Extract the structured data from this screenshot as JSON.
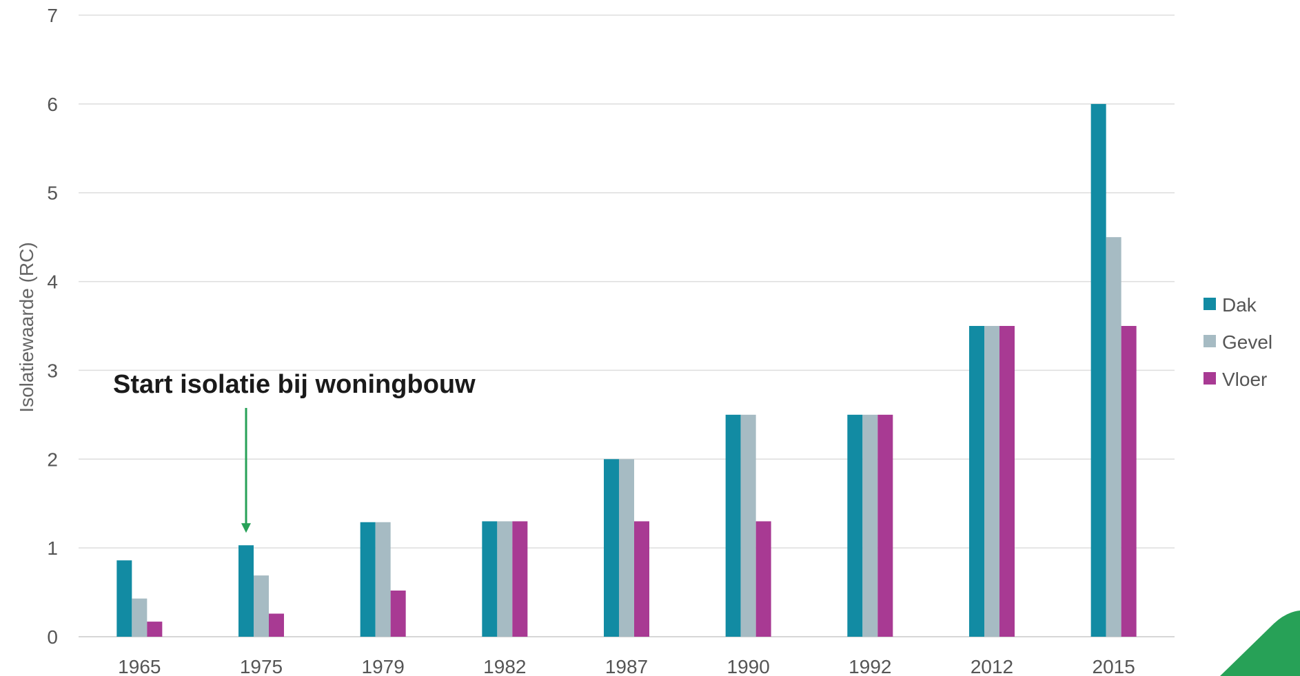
{
  "chart_data": {
    "type": "bar",
    "title": "",
    "xlabel": "",
    "ylabel": "Isolatiewaarde (RC)",
    "ylim": [
      0,
      7
    ],
    "yticks": [
      0,
      1,
      2,
      3,
      4,
      5,
      6,
      7
    ],
    "grid": true,
    "legend_position": "right",
    "categories": [
      "1965",
      "1975",
      "1979",
      "1982",
      "1987",
      "1990",
      "1992",
      "2012",
      "2015"
    ],
    "series": [
      {
        "name": "Dak",
        "color": "#128ba3",
        "values": [
          0.86,
          1.03,
          1.29,
          1.3,
          2.0,
          2.5,
          2.5,
          3.5,
          6.0
        ]
      },
      {
        "name": "Gevel",
        "color": "#a6bbc3",
        "values": [
          0.43,
          0.69,
          1.29,
          1.3,
          2.0,
          2.5,
          2.5,
          3.5,
          4.5
        ]
      },
      {
        "name": "Vloer",
        "color": "#a83a93",
        "values": [
          0.17,
          0.26,
          0.52,
          1.3,
          1.3,
          1.3,
          2.5,
          3.5,
          3.5
        ]
      }
    ],
    "annotation": {
      "text": "Start isolatie bij woningbouw",
      "category": "1975",
      "arrow_color": "#27a157"
    }
  },
  "decoration": {
    "corner_shape_color": "#27a157"
  }
}
